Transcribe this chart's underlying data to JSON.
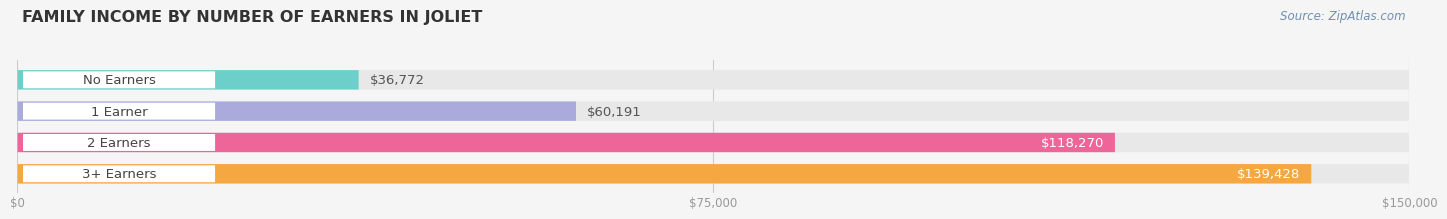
{
  "title": "FAMILY INCOME BY NUMBER OF EARNERS IN JOLIET",
  "source": "Source: ZipAtlas.com",
  "categories": [
    "No Earners",
    "1 Earner",
    "2 Earners",
    "3+ Earners"
  ],
  "values": [
    36772,
    60191,
    118270,
    139428
  ],
  "bar_colors": [
    "#6dcfca",
    "#aaaadd",
    "#ee6699",
    "#f5a742"
  ],
  "xlim": [
    0,
    150000
  ],
  "xtick_labels": [
    "$0",
    "$75,000",
    "$150,000"
  ],
  "value_labels": [
    "$36,772",
    "$60,191",
    "$118,270",
    "$139,428"
  ],
  "bg_color": "#f5f5f5",
  "bar_bg_color": "#e8e8e8",
  "title_color": "#333333",
  "title_fontsize": 11.5,
  "bar_height": 0.62,
  "label_fontsize": 9.5,
  "value_fontsize": 9.5,
  "source_fontsize": 8.5,
  "source_color": "#7090b0",
  "pill_color": "white",
  "pill_text_color": "#444444",
  "grid_color": "#cccccc",
  "tick_color": "#999999"
}
